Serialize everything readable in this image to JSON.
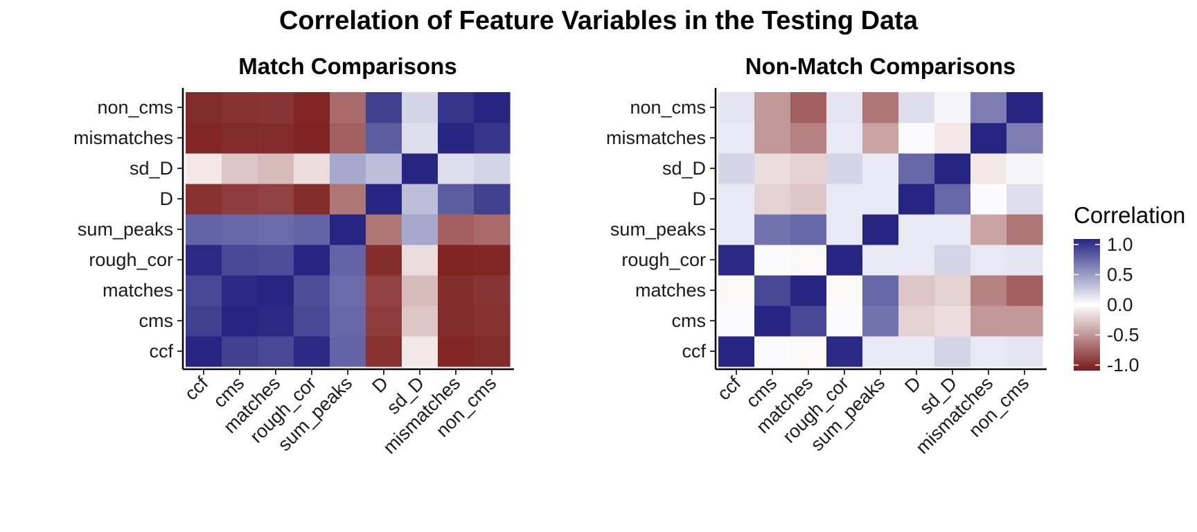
{
  "chart_data": {
    "type": "heatmap",
    "title": "Correlation of Feature Variables in the Testing Data",
    "variables": [
      "ccf",
      "cms",
      "matches",
      "rough_cor",
      "sum_peaks",
      "D",
      "sd_D",
      "mismatches",
      "non_cms"
    ],
    "legend": {
      "title": "Correlation",
      "position": "right",
      "ticks": [
        1.0,
        0.5,
        0.0,
        -0.5,
        -1.0
      ],
      "tick_labels": [
        "1.0",
        "0.5",
        "0.0",
        "-0.5",
        "-1.0"
      ],
      "range": [
        -1.0,
        1.0
      ],
      "colors": {
        "low": "#7a1a1a",
        "mid": "#ffffff",
        "high": "#262682"
      }
    },
    "panels": [
      {
        "title": "Match Comparisons",
        "matrix": [
          [
            1.0,
            0.88,
            0.85,
            0.98,
            0.72,
            -0.9,
            -0.1,
            -0.95,
            -0.93
          ],
          [
            0.88,
            1.0,
            0.98,
            0.85,
            0.7,
            -0.85,
            -0.25,
            -0.93,
            -0.9
          ],
          [
            0.85,
            0.98,
            1.0,
            0.82,
            0.68,
            -0.83,
            -0.3,
            -0.92,
            -0.88
          ],
          [
            0.98,
            0.85,
            0.82,
            1.0,
            0.72,
            -0.92,
            -0.15,
            -0.96,
            -0.95
          ],
          [
            0.72,
            0.7,
            0.68,
            0.72,
            1.0,
            -0.6,
            0.4,
            -0.7,
            -0.65
          ],
          [
            -0.9,
            -0.85,
            -0.83,
            -0.92,
            -0.6,
            1.0,
            0.3,
            0.75,
            0.88
          ],
          [
            -0.1,
            -0.25,
            -0.3,
            -0.15,
            0.4,
            0.3,
            1.0,
            0.15,
            0.2
          ],
          [
            -0.95,
            -0.93,
            -0.92,
            -0.96,
            -0.7,
            0.75,
            0.15,
            1.0,
            0.93
          ],
          [
            -0.93,
            -0.9,
            -0.88,
            -0.95,
            -0.65,
            0.88,
            0.2,
            0.93,
            1.0
          ]
        ]
      },
      {
        "title": "Non-Match Comparisons",
        "matrix": [
          [
            1.0,
            0.02,
            -0.03,
            0.98,
            0.1,
            0.1,
            0.2,
            0.1,
            0.12
          ],
          [
            0.02,
            1.0,
            0.85,
            0.02,
            0.65,
            -0.2,
            -0.15,
            -0.45,
            -0.45
          ],
          [
            -0.03,
            0.85,
            1.0,
            -0.03,
            0.7,
            -0.25,
            -0.2,
            -0.55,
            -0.7
          ],
          [
            0.98,
            0.02,
            -0.03,
            1.0,
            0.1,
            0.1,
            0.2,
            0.1,
            0.12
          ],
          [
            0.1,
            0.65,
            0.7,
            0.1,
            1.0,
            0.1,
            0.1,
            -0.4,
            -0.6
          ],
          [
            0.1,
            -0.2,
            -0.25,
            0.1,
            0.1,
            1.0,
            0.7,
            0.02,
            0.15
          ],
          [
            0.2,
            -0.15,
            -0.2,
            0.2,
            0.1,
            0.7,
            1.0,
            -0.1,
            0.05
          ],
          [
            0.1,
            -0.45,
            -0.55,
            0.1,
            -0.4,
            0.02,
            -0.1,
            1.0,
            0.6
          ],
          [
            0.12,
            -0.45,
            -0.7,
            0.12,
            -0.6,
            0.15,
            0.05,
            0.6,
            1.0
          ]
        ]
      }
    ]
  }
}
